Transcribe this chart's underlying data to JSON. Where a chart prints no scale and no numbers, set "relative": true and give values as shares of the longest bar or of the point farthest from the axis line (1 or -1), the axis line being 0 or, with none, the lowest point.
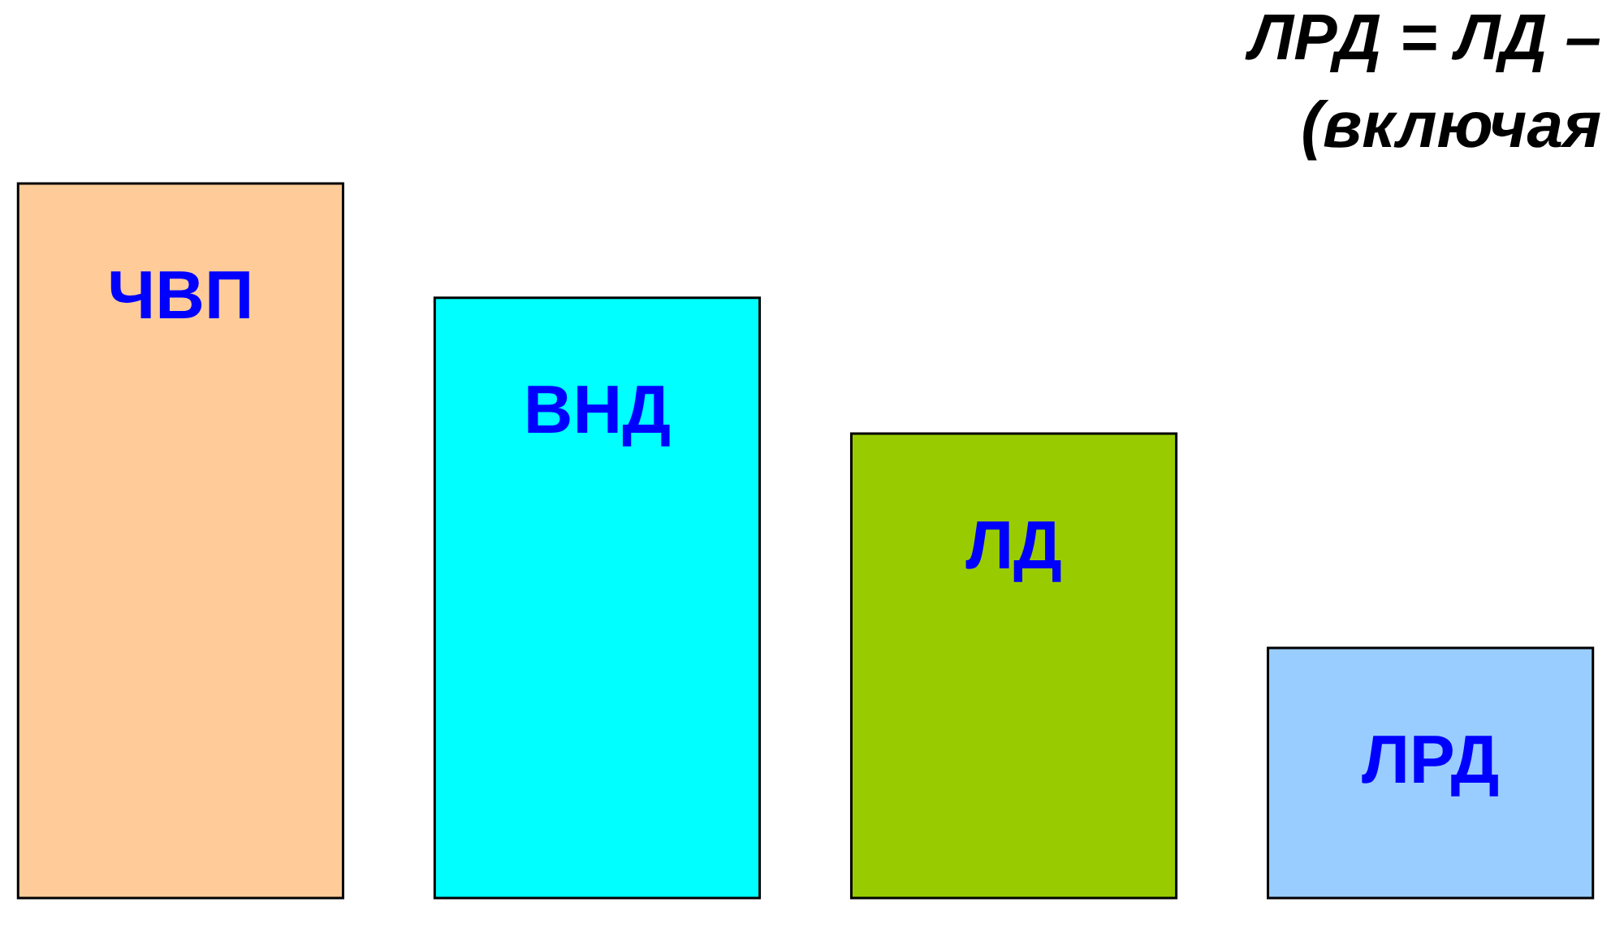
{
  "chart_data": {
    "type": "bar",
    "title": "ЛРД = ЛД –",
    "subtitle": "(включая",
    "relative": true,
    "categories": [
      "ЧВП",
      "ВНД",
      "ЛД",
      "ЛРД"
    ],
    "values": [
      1,
      0.84,
      0.65,
      0.35
    ],
    "colors": [
      "#ffcc99",
      "#00ffff",
      "#99cc00",
      "#99ccff"
    ]
  }
}
